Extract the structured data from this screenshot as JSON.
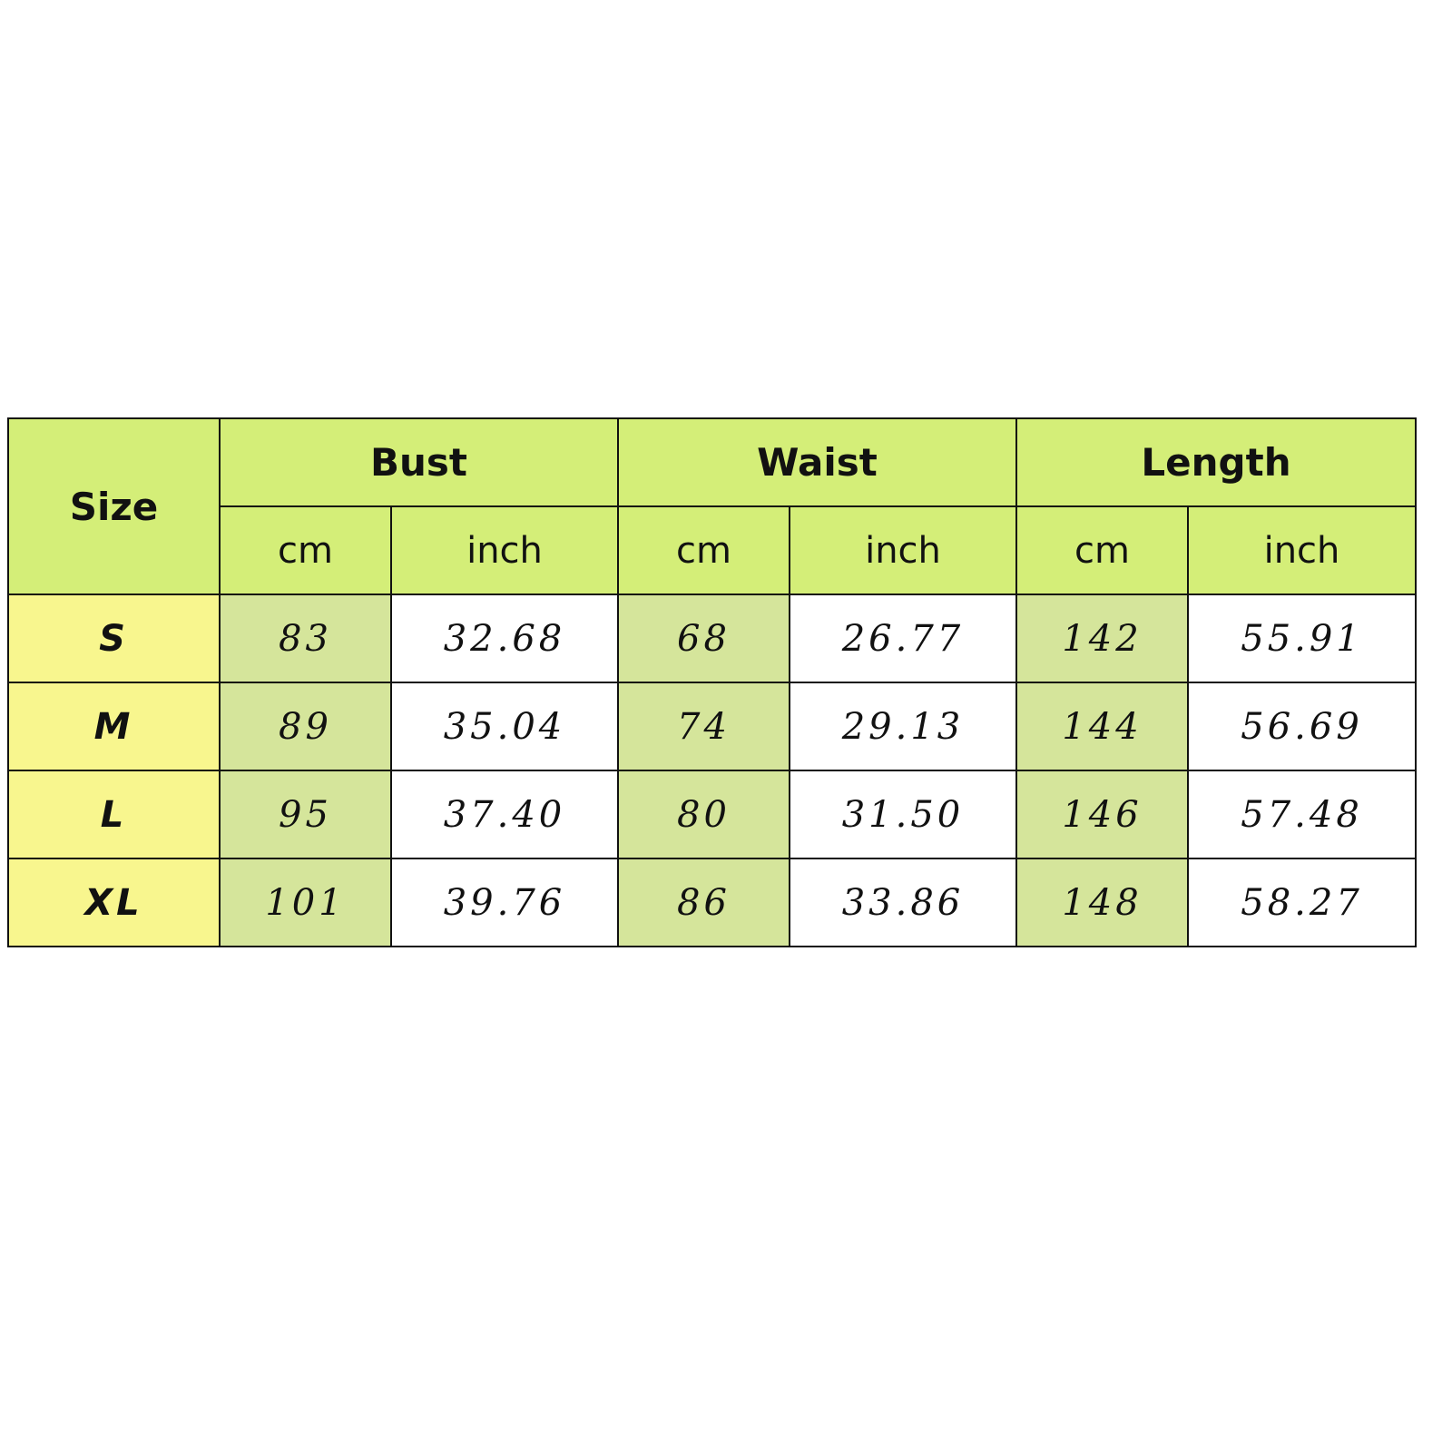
{
  "colors": {
    "header": "#d4ee78",
    "size_column": "#f8f68e",
    "cm_column": "#d5e59b",
    "inch_column": "#ffffff"
  },
  "header": {
    "size": "Size",
    "groups": [
      "Bust",
      "Waist",
      "Length"
    ],
    "units": [
      "cm",
      "inch",
      "cm",
      "inch",
      "cm",
      "inch"
    ]
  },
  "rows": [
    {
      "size": "S",
      "values": [
        "83",
        "32.68",
        "68",
        "26.77",
        "142",
        "55.91"
      ]
    },
    {
      "size": "M",
      "values": [
        "89",
        "35.04",
        "74",
        "29.13",
        "144",
        "56.69"
      ]
    },
    {
      "size": "L",
      "values": [
        "95",
        "37.40",
        "80",
        "31.50",
        "146",
        "57.48"
      ]
    },
    {
      "size": "XL",
      "values": [
        "101",
        "39.76",
        "86",
        "33.86",
        "148",
        "58.27"
      ]
    }
  ]
}
